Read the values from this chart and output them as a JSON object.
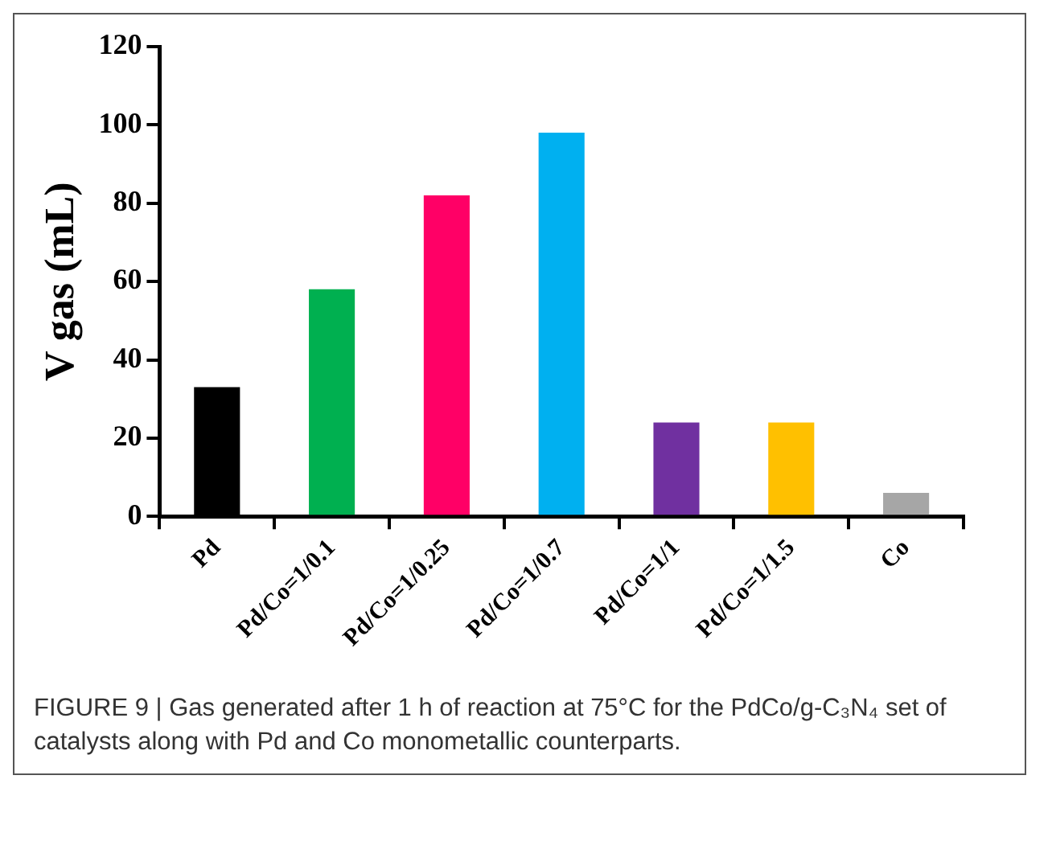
{
  "chart_data": {
    "type": "bar",
    "ylabel": "V gas (mL)",
    "categories": [
      "Pd",
      "Pd/Co=1/0.1",
      "Pd/Co=1/0.25",
      "Pd/Co=1/0.7",
      "Pd/Co=1/1",
      "Pd/Co=1/1.5",
      "Co"
    ],
    "values": [
      33,
      58,
      82,
      98,
      24,
      24,
      6
    ],
    "colors": [
      "#000000",
      "#00b050",
      "#ff0066",
      "#00b0f0",
      "#7030a0",
      "#ffc000",
      "#a6a6a6"
    ],
    "ylim": [
      0,
      120
    ],
    "yticks": [
      0,
      20,
      40,
      60,
      80,
      100,
      120
    ],
    "grid": false,
    "legend": false,
    "annotations": [
      "FIGURE 9 | Gas generated after 1 h of reaction at 75°C for the PdCo/g-C₃N₄ set of catalysts along with Pd and Co monometallic counterparts."
    ]
  }
}
